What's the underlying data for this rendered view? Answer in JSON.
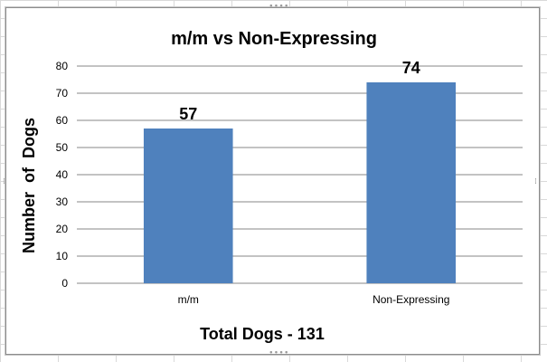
{
  "chart_data": {
    "type": "bar",
    "title": "m/m vs Non-Expressing",
    "xlabel": "Total Dogs - 131",
    "ylabel": "Number  of  Dogs",
    "categories": [
      "m/m",
      "Non-Expressing"
    ],
    "values": [
      57,
      74
    ],
    "data_labels": [
      "57",
      "74"
    ],
    "ylim": [
      0,
      80
    ],
    "yticks": [
      "0",
      "10",
      "20",
      "30",
      "40",
      "50",
      "60",
      "70",
      "80"
    ],
    "grid": true,
    "legend": "none",
    "bar_color": "#4f81bd",
    "grid_color": "#878787"
  }
}
